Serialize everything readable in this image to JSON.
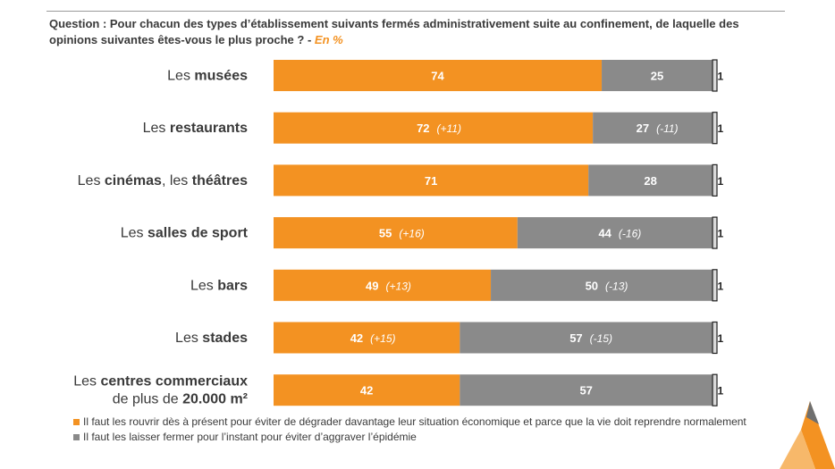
{
  "question": {
    "text": "Question : Pour chacun des types d’établissement suivants fermés administrativement suite au confinement, de laquelle des opinions suivantes êtes-vous le plus proche ?",
    "separator": " - ",
    "unit": "En %"
  },
  "colors": {
    "reopen": "#f39222",
    "keep_closed": "#8a8a8a",
    "no_answer": "#d9d9d9",
    "outline": "#222222"
  },
  "chart_data": {
    "type": "bar",
    "orientation": "horizontal",
    "stacked": true,
    "xlim": [
      0,
      100
    ],
    "unit": "En %",
    "categories": [
      {
        "parts": [
          {
            "t": "Les ",
            "b": false
          },
          {
            "t": "musées",
            "b": true
          }
        ]
      },
      {
        "parts": [
          {
            "t": "Les ",
            "b": false
          },
          {
            "t": "restaurants",
            "b": true
          }
        ]
      },
      {
        "parts": [
          {
            "t": "Les ",
            "b": false
          },
          {
            "t": "cinémas",
            "b": true
          },
          {
            "t": ", les ",
            "b": false
          },
          {
            "t": "théâtres",
            "b": true
          }
        ]
      },
      {
        "parts": [
          {
            "t": "Les ",
            "b": false
          },
          {
            "t": "salles de sport",
            "b": true
          }
        ]
      },
      {
        "parts": [
          {
            "t": "Les ",
            "b": false
          },
          {
            "t": "bars",
            "b": true
          }
        ]
      },
      {
        "parts": [
          {
            "t": "Les ",
            "b": false
          },
          {
            "t": "stades",
            "b": true
          }
        ]
      },
      {
        "lines": [
          [
            {
              "t": "Les ",
              "b": false
            },
            {
              "t": "centres commerciaux",
              "b": true
            }
          ],
          [
            {
              "t": "de plus de ",
              "b": false
            },
            {
              "t": "20.000 m²",
              "b": true
            }
          ]
        ]
      }
    ],
    "series": [
      {
        "name": "Il faut les rouvrir dès à présent pour éviter de dégrader davantage leur situation économique et parce que la vie doit reprendre normalement",
        "color": "#f39222",
        "values": [
          74,
          72,
          71,
          55,
          49,
          42,
          42
        ],
        "deltas": [
          "",
          "(+11)",
          "",
          "(+16)",
          "(+13)",
          "(+15)",
          ""
        ]
      },
      {
        "name": "Il faut les laisser fermer pour l’instant pour éviter d’aggraver l’épidémie",
        "color": "#8a8a8a",
        "values": [
          25,
          27,
          28,
          44,
          50,
          57,
          57
        ],
        "deltas": [
          "",
          "(-11)",
          "",
          "(-16)",
          "(-13)",
          "(-15)",
          ""
        ]
      },
      {
        "color": "#d9d9d9",
        "values": [
          1,
          1,
          1,
          1,
          1,
          1,
          1
        ],
        "deltas": [
          "",
          "",
          "",
          "",
          "",
          "",
          ""
        ]
      }
    ]
  },
  "legend": [
    {
      "label": "Il faut les rouvrir dès à présent pour éviter de dégrader davantage leur situation économique et parce que la vie doit reprendre normalement",
      "color": "#f39222"
    },
    {
      "label": "Il faut les laisser fermer pour l’instant pour éviter d’aggraver l’épidémie",
      "color": "#8a8a8a"
    }
  ],
  "logo": {
    "icon": "brand-logo-icon"
  }
}
